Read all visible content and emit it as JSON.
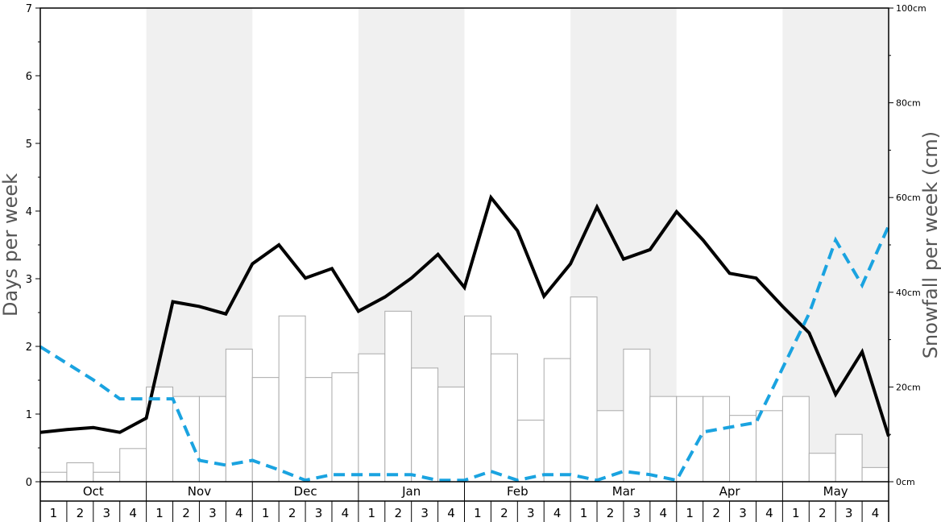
{
  "chart_data": {
    "type": "bar",
    "months": [
      "Oct",
      "Nov",
      "Dec",
      "Jan",
      "Feb",
      "Mar",
      "Apr",
      "May"
    ],
    "week_labels": [
      "1",
      "2",
      "3",
      "4"
    ],
    "ylabel_left": "Days per week",
    "ylabel_right": "Snowfall per week (cm)",
    "y_left_ticks": [
      "0",
      "1",
      "2",
      "3",
      "4",
      "5",
      "6",
      "7"
    ],
    "y_right_ticks": [
      "0cm",
      "20cm",
      "40cm",
      "60cm",
      "80cm",
      "100cm"
    ],
    "ylim_left": [
      0,
      7
    ],
    "ylim_right": [
      0,
      100
    ],
    "grid": false,
    "shaded_months": [
      "Nov",
      "Jan",
      "Mar",
      "May"
    ],
    "colors": {
      "bar_fill": "#ffffff",
      "bar_stroke": "#aaaaaa",
      "line_black": "#000000",
      "line_dashed": "#1aa3e0",
      "shade": "#f0f0f0"
    },
    "series": [
      {
        "type": "bar",
        "axis": "right",
        "values": [
          2,
          4,
          2,
          7,
          20,
          18,
          18,
          28,
          22,
          35,
          22,
          23,
          27,
          36,
          24,
          20,
          35,
          27,
          13,
          26,
          39,
          15,
          28,
          18,
          18,
          18,
          14,
          15,
          18,
          6,
          10,
          3
        ]
      },
      {
        "type": "line",
        "axis": "left",
        "style": "solid",
        "values": [
          0.73,
          0.77,
          0.8,
          0.73,
          0.94,
          2.66,
          2.59,
          2.48,
          3.22,
          3.5,
          3.01,
          3.15,
          2.52,
          2.73,
          3.01,
          3.36,
          2.87,
          4.2,
          3.71,
          2.74,
          3.22,
          4.06,
          3.29,
          3.43,
          3.99,
          3.57,
          3.08,
          3.01,
          2.59,
          2.2,
          1.29,
          1.92,
          0.67
        ]
      },
      {
        "type": "line",
        "axis": "right",
        "style": "dashed",
        "values": [
          28.5,
          25,
          21.5,
          17.5,
          17.5,
          17.5,
          4.5,
          3.5,
          4.5,
          2.5,
          0.3,
          1.5,
          1.5,
          1.5,
          1.5,
          0.3,
          0.3,
          2.2,
          0.3,
          1.5,
          1.5,
          0.3,
          2.2,
          1.5,
          0.3,
          10.5,
          11.5,
          12.5,
          24,
          35.5,
          51,
          41.5,
          54
        ]
      }
    ]
  }
}
